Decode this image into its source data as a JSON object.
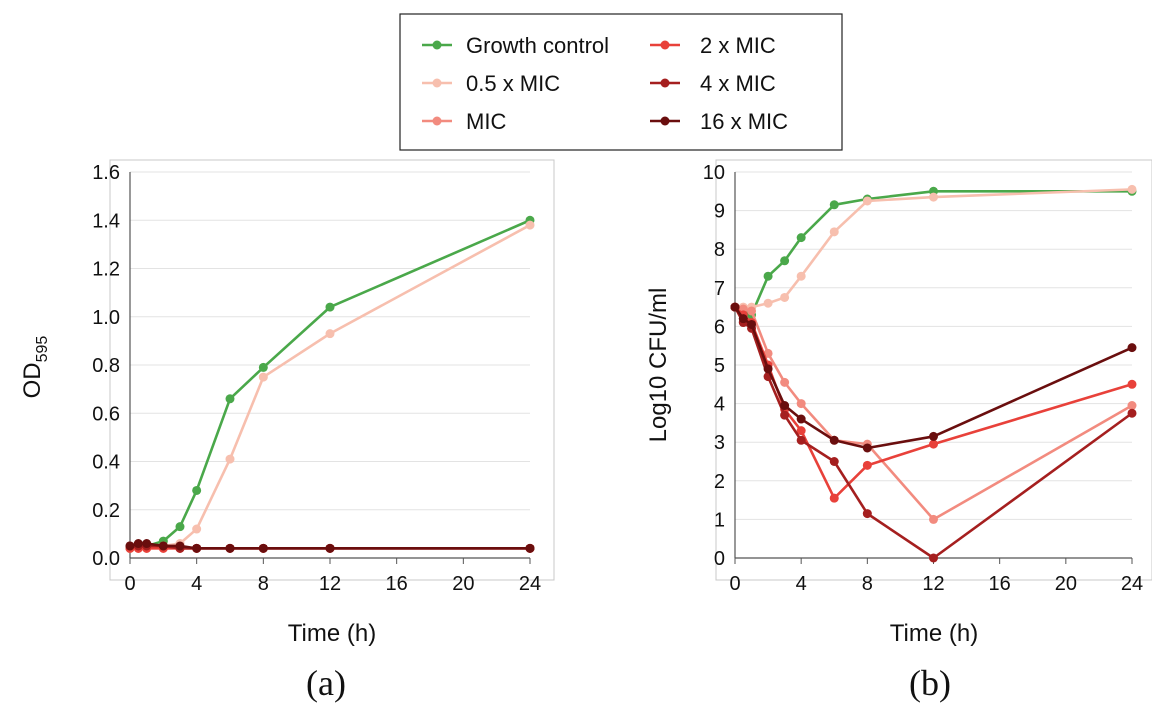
{
  "legend": {
    "items": [
      {
        "label": "Growth control",
        "color": "#4aa84a"
      },
      {
        "label": "0.5 x MIC",
        "color": "#f7bfae"
      },
      {
        "label": "MIC",
        "color": "#f28b7f"
      },
      {
        "label": "2 x MIC",
        "color": "#e8413a"
      },
      {
        "label": "4 x MIC",
        "color": "#a51f1f"
      },
      {
        "label": "16 x MIC",
        "color": "#6a0e0e"
      }
    ]
  },
  "chart_data": [
    {
      "type": "line",
      "panel_label": "(a)",
      "title": "",
      "xlabel": "Time (h)",
      "ylabel_main": "OD",
      "ylabel_sub": "595",
      "xlim": [
        0,
        24
      ],
      "ylim": [
        0,
        1.6
      ],
      "xticks": [
        0,
        4,
        8,
        12,
        16,
        20,
        24
      ],
      "yticks": [
        0.0,
        0.2,
        0.4,
        0.6,
        0.8,
        1.0,
        1.2,
        1.4,
        1.6
      ],
      "ytick_labels": [
        "0.0",
        "0.2",
        "0.4",
        "0.6",
        "0.8",
        "1.0",
        "1.2",
        "1.4",
        "1.6"
      ],
      "grid": "horizontal",
      "x": [
        0,
        0.5,
        1,
        2,
        3,
        4,
        6,
        8,
        12,
        24
      ],
      "series": [
        {
          "name": "Growth control",
          "color": "#4aa84a",
          "values": [
            0.04,
            0.05,
            0.05,
            0.07,
            0.13,
            0.28,
            0.66,
            0.79,
            1.04,
            1.4
          ]
        },
        {
          "name": "0.5 x MIC",
          "color": "#f7bfae",
          "values": [
            0.04,
            0.04,
            0.04,
            0.05,
            0.06,
            0.12,
            0.41,
            0.75,
            0.93,
            1.38
          ]
        },
        {
          "name": "MIC",
          "color": "#f28b7f",
          "values": [
            0.04,
            0.04,
            0.04,
            0.04,
            0.04,
            0.04,
            0.04,
            0.04,
            0.04,
            0.04
          ]
        },
        {
          "name": "2 x MIC",
          "color": "#e8413a",
          "values": [
            0.04,
            0.04,
            0.04,
            0.04,
            0.04,
            0.04,
            0.04,
            0.04,
            0.04,
            0.04
          ]
        },
        {
          "name": "4 x MIC",
          "color": "#a51f1f",
          "values": [
            0.05,
            0.05,
            0.05,
            0.05,
            0.04,
            0.04,
            0.04,
            0.04,
            0.04,
            0.04
          ]
        },
        {
          "name": "16 x MIC",
          "color": "#6a0e0e",
          "values": [
            0.05,
            0.06,
            0.06,
            0.05,
            0.05,
            0.04,
            0.04,
            0.04,
            0.04,
            0.04
          ]
        }
      ]
    },
    {
      "type": "line",
      "panel_label": "(b)",
      "title": "",
      "xlabel": "Time (h)",
      "ylabel_main": "Log10 CFU/ml",
      "ylabel_sub": "",
      "xlim": [
        0,
        24
      ],
      "ylim": [
        0,
        10
      ],
      "xticks": [
        0,
        4,
        8,
        12,
        16,
        20,
        24
      ],
      "yticks": [
        0,
        1,
        2,
        3,
        4,
        5,
        6,
        7,
        8,
        9,
        10
      ],
      "ytick_labels": [
        "0",
        "1",
        "2",
        "3",
        "4",
        "5",
        "6",
        "7",
        "8",
        "9",
        "10"
      ],
      "grid": "horizontal",
      "x": [
        0,
        0.5,
        1,
        2,
        3,
        4,
        6,
        8,
        12,
        24
      ],
      "series": [
        {
          "name": "Growth control",
          "color": "#4aa84a",
          "values": [
            6.5,
            6.4,
            6.3,
            7.3,
            7.7,
            8.3,
            9.15,
            9.3,
            9.5,
            9.5
          ]
        },
        {
          "name": "0.5 x MIC",
          "color": "#f7bfae",
          "values": [
            6.5,
            6.5,
            6.5,
            6.6,
            6.75,
            7.3,
            8.45,
            9.25,
            9.35,
            9.55
          ]
        },
        {
          "name": "MIC",
          "color": "#f28b7f",
          "values": [
            6.5,
            6.45,
            6.4,
            5.3,
            4.55,
            4.0,
            3.05,
            2.95,
            1.0,
            3.95
          ]
        },
        {
          "name": "2 x MIC",
          "color": "#e8413a",
          "values": [
            6.5,
            6.3,
            6.1,
            5.0,
            3.85,
            3.3,
            1.55,
            2.4,
            2.95,
            4.5
          ]
        },
        {
          "name": "4 x MIC",
          "color": "#a51f1f",
          "values": [
            6.5,
            6.1,
            5.95,
            4.7,
            3.7,
            3.05,
            2.5,
            1.15,
            0.0,
            3.75
          ]
        },
        {
          "name": "16 x MIC",
          "color": "#6a0e0e",
          "values": [
            6.5,
            6.2,
            6.05,
            4.9,
            3.95,
            3.6,
            3.05,
            2.85,
            3.15,
            5.45
          ]
        }
      ]
    }
  ]
}
